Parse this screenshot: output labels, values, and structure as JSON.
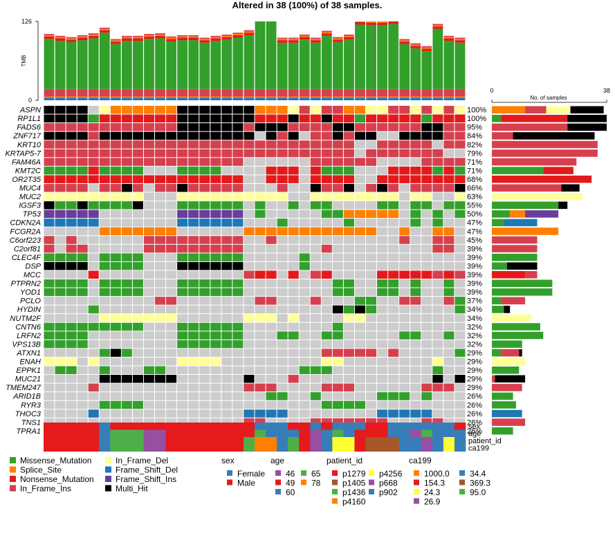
{
  "chart_data": {
    "type": "heatmap",
    "title": "Altered in 38 (100%) of 38 samples.",
    "tmb": {
      "ylabel": "TMB",
      "ymax": 126,
      "ymin": 0,
      "totals": [
        106,
        103,
        101,
        104,
        107,
        116,
        98,
        103,
        103,
        106,
        107,
        102,
        104,
        104,
        100,
        103,
        105,
        108,
        112,
        140,
        135,
        100,
        100,
        105,
        100,
        111,
        101,
        105,
        129,
        128,
        128,
        130,
        98,
        92,
        88,
        122,
        103,
        100
      ]
    },
    "samples_axis": {
      "label": "No. of samples",
      "min": 0,
      "max": 38
    },
    "num_samples": 38,
    "genes": [
      {
        "name": "ASPN",
        "pct": "100%",
        "codes": "HHHHCFSSSSSSHHHHHHHSSSFIFIISSFFIIFIFIF"
      },
      {
        "name": "RP1L1",
        "pct": "100%",
        "codes": "HHHHMNNNNNNNHHHHHHHNNNHNNHNNMNNNNNMNNN"
      },
      {
        "name": "FADS6",
        "pct": "95%",
        "codes": "IIIIIIIIIIIIHHHHHHIHHHIIIIHHIIIIIIHHII"
      },
      {
        "name": "ZNF717",
        "pct": "84%",
        "codes": "HHHHIHHHHHHHHHHHHHHGHIHGIIHIHHGGHHHHII"
      },
      {
        "name": "KRT10",
        "pct": "82%",
        "codes": "IIIIIIIIIIIIIIIIIIIIIIIIIIIIGGIIIIIGII"
      },
      {
        "name": "KRTAP5-7",
        "pct": "79%",
        "codes": "IIIIIIIIIIIIIIIIIIIIIIIIIIIIGIIIIIIIGG"
      },
      {
        "name": "FAM46A",
        "pct": "71%",
        "codes": "IIIIIIIIIIIIIIIIIIGGGGGGIIIIIIGGGGIIII"
      },
      {
        "name": "KMT2C",
        "pct": "71%",
        "codes": "MMMMNMMMMGGGMMMMGGGGNNNGNMMMGGGNNNNMNM"
      },
      {
        "name": "OR2T35",
        "pct": "68%",
        "codes": "NNNNNNNNNNNNNNNNNNGGNNNGNNNNGGNNNNNNNN"
      },
      {
        "name": "MUC4",
        "pct": "66%",
        "codes": "IIIIGIIHIGIIHIIIIIGGGIGGHIIHGIHIGIIIIH"
      },
      {
        "name": "MUC2",
        "pct": "63%",
        "codes": "FFFFFFFFFGGGFFFFFFFFFFGGFFFFFFFFGFFGGF"
      },
      {
        "name": "IGSF3",
        "pct": "55%",
        "codes": "HMMHMMMMHGGGMMMMMMGMGGMGMMGGGGMMGMMGMM"
      },
      {
        "name": "TP53",
        "pct": "50%",
        "codes": "PPPPPGGGGGGGPPPPPPGMGGGGGMMSSSSSGMGMGM"
      },
      {
        "name": "CDKN2A",
        "pct": "47%",
        "codes": "BBBBBGGGGGGGBBBBBBGGGMGGGGGMGGGGGMGMGG"
      },
      {
        "name": "FCGR2A",
        "pct": "47%",
        "codes": "GGGGGSSSSSSSGGGGGGSSSSSSSSSSSSGGSGGSSG"
      },
      {
        "name": "C6orf223",
        "pct": "45%",
        "codes": "IGIGGGGGGIIIIIIIIIGGIGGGGGGGGGGGIGGIIG"
      },
      {
        "name": "C2orf81",
        "pct": "39%",
        "codes": "IGIIGGGGGIIIIIIIIIGGGGGGGIGGGGGGGGGIIG"
      },
      {
        "name": "CLEC4F",
        "pct": "39%",
        "codes": "MMMMGMMMMGGGMMMMMMGGGGGMGGGGGGGGGGGGGG"
      },
      {
        "name": "DSP",
        "pct": "39%",
        "codes": "HHHHGMMMMGGGHHHHHHGGGGGMGGGGGGGGGGGGGG"
      },
      {
        "name": "MCC",
        "pct": "39%",
        "codes": "GGGGNGGGGGGGGGGGGGINNGNGINGGGGNNNNNINI"
      },
      {
        "name": "PTPRN2",
        "pct": "39%",
        "codes": "MMMMGMMMMGGGMMMMMMGGGGGGGGMMGGMMGMGGMG"
      },
      {
        "name": "YOD1",
        "pct": "39%",
        "codes": "MMMMGMMMMGGGMMMMMMGGGGGGGGMMGGMMGMGGMG"
      },
      {
        "name": "PCLO",
        "pct": "37%",
        "codes": "GGGGGGGGGGIIGGGGGGGIIGGGIGGGMMGGIIGGIM"
      },
      {
        "name": "HYDIN",
        "pct": "34%",
        "codes": "GGGGMGGGGGGGGGGGGGGGGGGGGGHMHMGGGGGGGM"
      },
      {
        "name": "NUTM2F",
        "pct": "34%",
        "codes": "GGGGGFFFFFFFGGGGGGFFFGFGGGGFFGGGGGGGGG"
      },
      {
        "name": "CNTN6",
        "pct": "32%",
        "codes": "MMMMMMMMMGGGMMMMMMGGGGGGGGMGGGGGGGGGGG"
      },
      {
        "name": "LRFN2",
        "pct": "32%",
        "codes": "MMMMGGGGGGGGMMMMMMGGGMMGGMMGGGGGMMGGMG"
      },
      {
        "name": "VPS13B",
        "pct": "32%",
        "codes": "MMMMGGGGGGGGMMMMMMGGGGGGGGGGGGGGGGGGGG"
      },
      {
        "name": "ATXN1",
        "pct": "29%",
        "codes": "GGGGGMHMGGGGGGGGGGGGGGGGGIIIIIGIGGGGGM"
      },
      {
        "name": "ENAH",
        "pct": "29%",
        "codes": "FFFGFGGGGGGGFFFFGGGGGGGGGFFGGGGGGGGFGG"
      },
      {
        "name": "EPPK1",
        "pct": "29%",
        "codes": "GMMGGMGGGMMGGGGGGGGGGGGMMMGGGGGGGGGMGG"
      },
      {
        "name": "MUC21",
        "pct": "29%",
        "codes": "GGGGGHHHHHHHGGGGGGHGGGIGGGGGGGGGGGGHGH"
      },
      {
        "name": "TMEM247",
        "pct": "29%",
        "codes": "GGGGIGGGGGGGGGGGGGIIIGGGGIIIGGGGGGIIIG"
      },
      {
        "name": "ARID1B",
        "pct": "26%",
        "codes": "GGGGGGGGGGGGGGGGGGGGMMGGMGGGGGMMMGMGGG"
      },
      {
        "name": "RYR3",
        "pct": "26%",
        "codes": "GGGGGMMMMGGGGGGGGGGGGGGGGMMMMGGGGGGGGG"
      },
      {
        "name": "THOC3",
        "pct": "26%",
        "codes": "GGGGBGGGGGGGGGGGGGBBBBGGGGGGGGBBBBBGGG"
      },
      {
        "name": "TNS1",
        "pct": "26%",
        "codes": "GGGGGGGGGGGGGGGGGGIIGGGGIIIIIIIGGGIIGG"
      },
      {
        "name": "TPRA1",
        "pct": "26%",
        "codes": "GGGGMGGGGGGGGGGGGGGGGGGMGGGGMMMGGMGGGM"
      }
    ],
    "clinical_tracks": [
      {
        "name": "sex",
        "codes": "RRRRRBRRRRRRRRRRRRRBBBRRBRBBBRRBBBBBBR"
      },
      {
        "name": "age",
        "codes": "RRRRRBMMMPPRRRRRRRRGBBBRPBMBRRRBBPMBBB"
      },
      {
        "name": "patient_id",
        "codes": "RRRRRBMMMPPRRRRRRRGOOBMRPBYYRNNNBBPBYBB"
      },
      {
        "name": "ca199",
        "codes": "RRRRRBMMMPPRRRRRRRGOOBMRPBYYRNNNBBPBYBB"
      }
    ],
    "variant_legend": [
      {
        "key": "M",
        "label": "Missense_Mutation",
        "color": "#33a02c"
      },
      {
        "key": "S",
        "label": "Splice_Site",
        "color": "#ff7f00"
      },
      {
        "key": "N",
        "label": "Nonsense_Mutation",
        "color": "#e31a1c"
      },
      {
        "key": "I",
        "label": "In_Frame_Ins",
        "color": "#d6404e"
      },
      {
        "key": "F",
        "label": "In_Frame_Del",
        "color": "#ffff99"
      },
      {
        "key": "B",
        "label": "Frame_Shift_Del",
        "color": "#1f78b4"
      },
      {
        "key": "P",
        "label": "Frame_Shift_Ins",
        "color": "#6a3d9a"
      },
      {
        "key": "H",
        "label": "Multi_Hit",
        "color": "#000000"
      }
    ],
    "track_legends": [
      {
        "title": "sex",
        "items": [
          {
            "label": "Female",
            "color": "#377eb8"
          },
          {
            "label": "Male",
            "color": "#e41a1c"
          }
        ]
      },
      {
        "title": "age",
        "items": [
          {
            "label": "46",
            "color": "#984ea3"
          },
          {
            "label": "49",
            "color": "#e41a1c"
          },
          {
            "label": "60",
            "color": "#377eb8"
          },
          {
            "label": "65",
            "color": "#4daf4a"
          },
          {
            "label": "78",
            "color": "#ff7f00"
          }
        ]
      },
      {
        "title": "patient_id",
        "items": [
          {
            "label": "p1279",
            "color": "#e41a1c"
          },
          {
            "label": "p1405",
            "color": "#a65628"
          },
          {
            "label": "p1436",
            "color": "#4daf4a"
          },
          {
            "label": "p4160",
            "color": "#ff7f00"
          },
          {
            "label": "p4256",
            "color": "#ffff33"
          },
          {
            "label": "p668",
            "color": "#984ea3"
          },
          {
            "label": "p902",
            "color": "#377eb8"
          }
        ]
      },
      {
        "title": "ca199",
        "items": [
          {
            "label": "1000.0",
            "color": "#ff7f00"
          },
          {
            "label": "154.3",
            "color": "#e41a1c"
          },
          {
            "label": "24.3",
            "color": "#ffff33"
          },
          {
            "label": "26.9",
            "color": "#984ea3"
          },
          {
            "label": "34.4",
            "color": "#377eb8"
          },
          {
            "label": "369.3",
            "color": "#a65628"
          },
          {
            "label": "95.0",
            "color": "#4daf4a"
          }
        ]
      }
    ],
    "colors": {
      "no_alteration": "#cccccc",
      "tmb_low_band": "#d6404e",
      "tmb_blue": "#1f78b4"
    }
  }
}
